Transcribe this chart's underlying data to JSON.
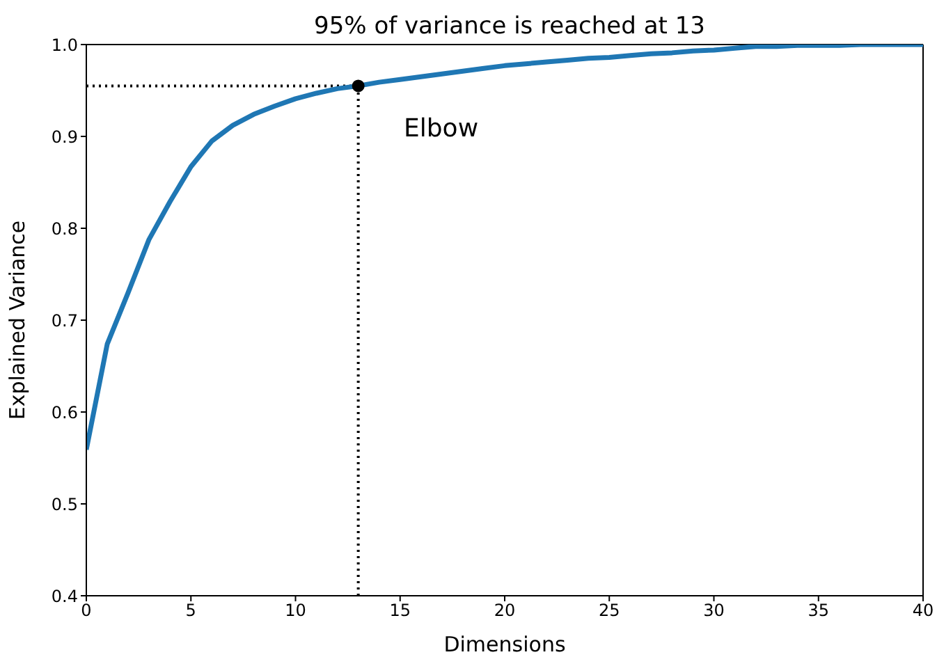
{
  "chart_data": {
    "type": "line",
    "title": "95% of variance is reached at 13",
    "xlabel": "Dimensions",
    "ylabel": "Explained Variance",
    "x": [
      0,
      1,
      2,
      3,
      4,
      5,
      6,
      7,
      8,
      9,
      10,
      11,
      12,
      13,
      14,
      15,
      16,
      17,
      18,
      19,
      20,
      21,
      22,
      23,
      24,
      25,
      26,
      27,
      28,
      29,
      30,
      31,
      32,
      33,
      34,
      35,
      36,
      37,
      38,
      39,
      40
    ],
    "series": [
      {
        "color": "#1f77b4",
        "marker": "none",
        "values": [
          0.559,
          0.674,
          0.73,
          0.788,
          0.829,
          0.867,
          0.895,
          0.912,
          0.924,
          0.933,
          0.941,
          0.947,
          0.952,
          0.955,
          0.959,
          0.962,
          0.965,
          0.968,
          0.971,
          0.974,
          0.977,
          0.979,
          0.981,
          0.983,
          0.985,
          0.986,
          0.988,
          0.99,
          0.991,
          0.993,
          0.994,
          0.996,
          0.998,
          0.998,
          0.999,
          0.999,
          0.999,
          1.0,
          1.0,
          1.0,
          1.0
        ]
      },
      {
        "type": "scatter",
        "marker": "circle",
        "color": "#000000",
        "x": [
          13
        ],
        "values": [
          0.955
        ]
      }
    ],
    "xlim": [
      0,
      40
    ],
    "xticks": [
      0,
      5,
      10,
      15,
      20,
      25,
      30,
      35,
      40
    ],
    "ylim": [
      0.4,
      1.0
    ],
    "yticks": [
      0.4,
      0.5,
      0.6,
      0.7,
      0.8,
      0.9,
      {
        "value": 1.0,
        "label": "1.0"
      }
    ],
    "ref_lines": [
      {
        "axis": "x",
        "value": 13,
        "color": "#000000",
        "line_style": "dotted"
      },
      {
        "axis": "y",
        "value": 0.955,
        "color": "#000000",
        "line_style": "dotted"
      }
    ],
    "annotations": [
      "Elbow"
    ],
    "grid": false,
    "legend": false,
    "line_style": "solid"
  }
}
